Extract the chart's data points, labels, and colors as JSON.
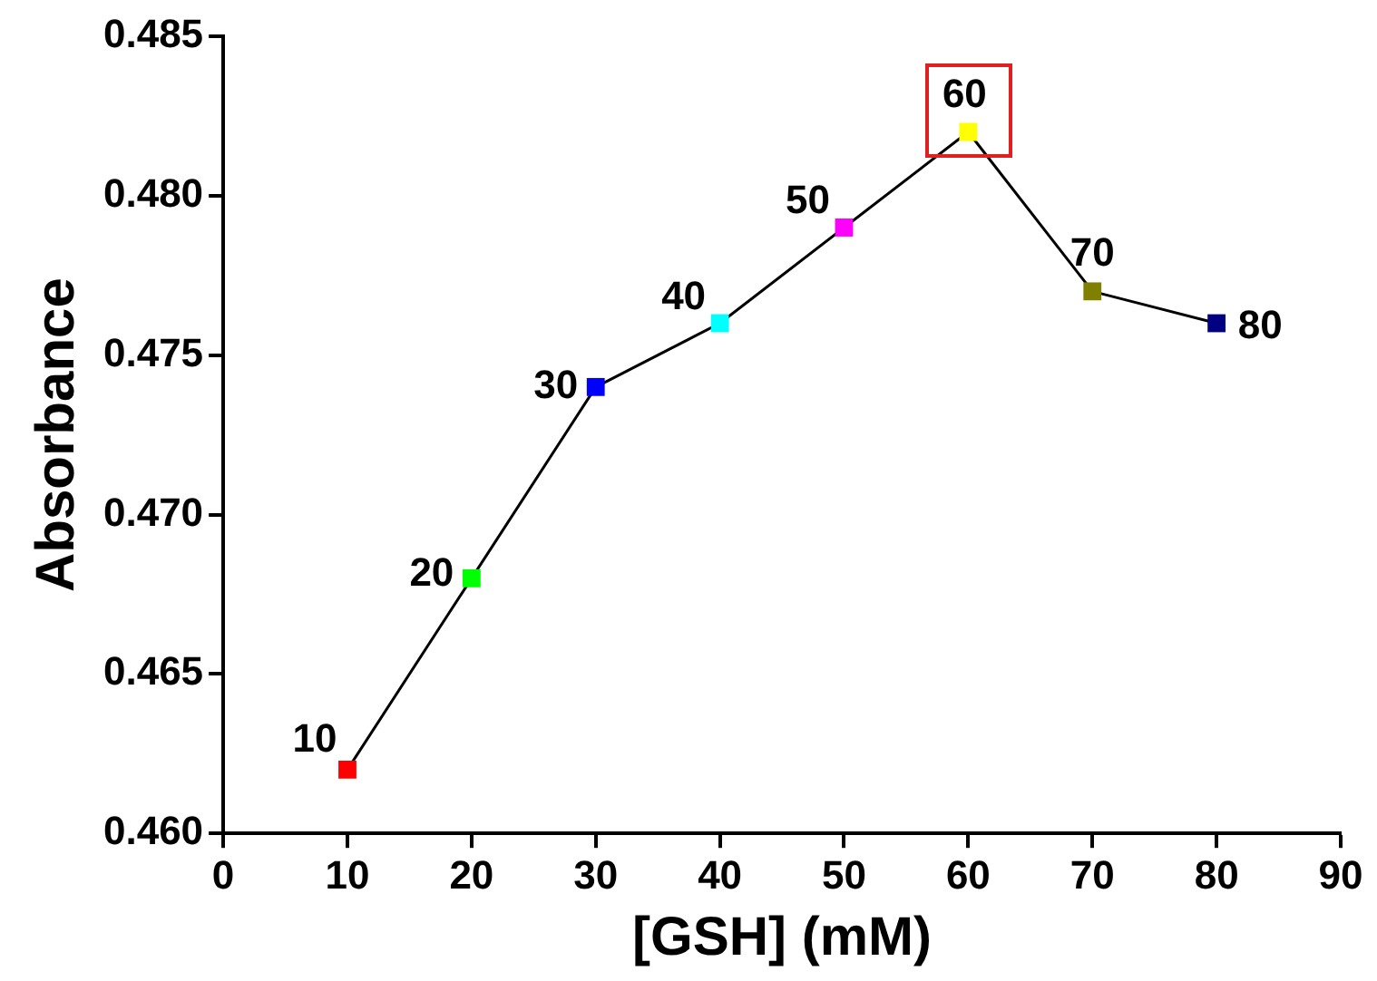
{
  "chart_data": {
    "type": "line",
    "xlabel": "[GSH] (mM)",
    "ylabel": "Absorbance",
    "x": [
      10,
      20,
      30,
      40,
      50,
      60,
      70,
      80
    ],
    "series": [
      {
        "values": [
          0.462,
          0.468,
          0.474,
          0.476,
          0.479,
          0.482,
          0.477,
          0.476
        ],
        "color": "#000000",
        "colors": [
          "#ff0000",
          "#00ff00",
          "#0000ff",
          "#00ffff",
          "#ff00ff",
          "#ffff00",
          "#808000",
          "#000080"
        ]
      }
    ],
    "xlim": [
      0,
      90
    ],
    "xticks": [
      0,
      10,
      20,
      30,
      40,
      50,
      60,
      70,
      80,
      90
    ],
    "ylim": [
      0.46,
      0.485
    ],
    "yticks": [
      {
        "value": 0.46,
        "label": "0.460"
      },
      {
        "value": 0.465,
        "label": "0.465"
      },
      {
        "value": 0.47,
        "label": "0.470"
      },
      {
        "value": 0.475,
        "label": "0.475"
      },
      {
        "value": 0.48,
        "label": "0.480"
      },
      {
        "value": 0.485,
        "label": "0.485"
      }
    ],
    "annotations": [
      {
        "text": "10",
        "x": 10,
        "y": 0.462
      },
      {
        "text": "20",
        "x": 20,
        "y": 0.468
      },
      {
        "text": "30",
        "x": 30,
        "y": 0.474
      },
      {
        "text": "40",
        "x": 40,
        "y": 0.476
      },
      {
        "text": "50",
        "x": 50,
        "y": 0.479
      },
      {
        "text": "60",
        "x": 60,
        "y": 0.482
      },
      {
        "text": "70",
        "x": 70,
        "y": 0.477
      },
      {
        "text": "80",
        "x": 80,
        "y": 0.476
      }
    ],
    "marker": "square",
    "line_style": "solid",
    "grid": false,
    "legend": false
  }
}
